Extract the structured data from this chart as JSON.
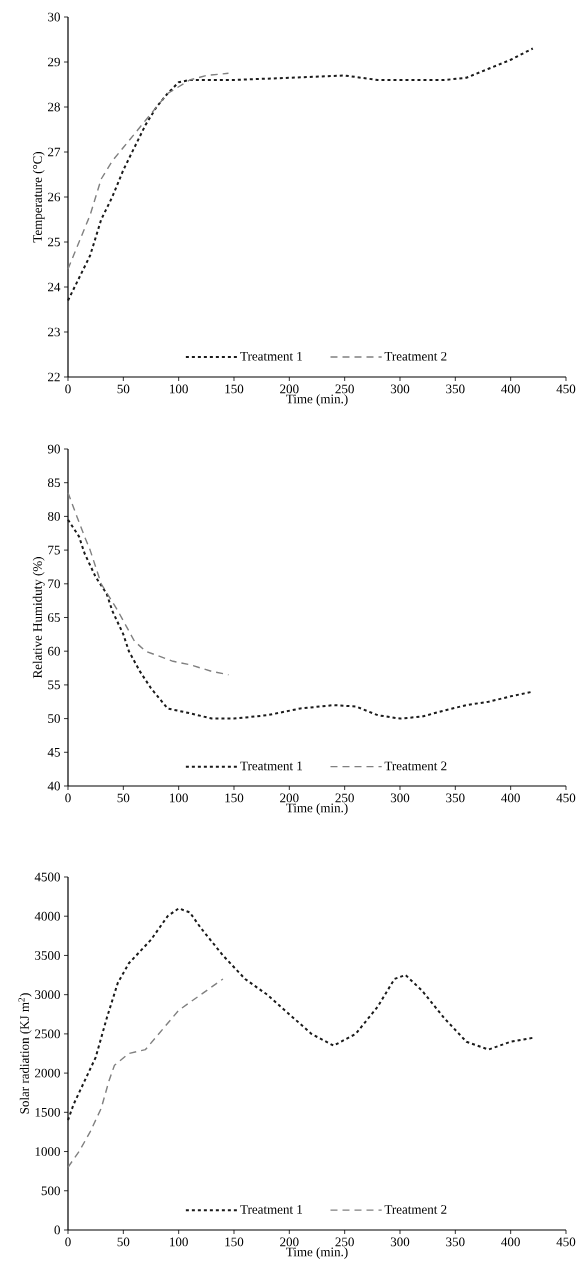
{
  "chart_data": [
    {
      "type": "line",
      "xlabel": "Time (min.)",
      "ylabel": "Temperature (°C)",
      "xlim": [
        0,
        450
      ],
      "xticks": [
        0,
        50,
        100,
        150,
        200,
        250,
        300,
        350,
        400,
        450
      ],
      "ylim": [
        22,
        30
      ],
      "yticks": [
        22,
        23,
        24,
        25,
        26,
        27,
        28,
        29,
        30
      ],
      "legend": "bottom",
      "series": [
        {
          "name": "Treatment 1",
          "color": "#1a1a1a",
          "line_style": "dotted",
          "x": [
            0,
            10,
            20,
            30,
            40,
            50,
            60,
            70,
            80,
            90,
            100,
            110,
            125,
            150,
            200,
            250,
            280,
            300,
            340,
            360,
            380,
            400,
            420
          ],
          "values": [
            23.7,
            24.2,
            24.7,
            25.5,
            26.0,
            26.6,
            27.1,
            27.6,
            28.0,
            28.3,
            28.55,
            28.6,
            28.6,
            28.6,
            28.65,
            28.7,
            28.6,
            28.6,
            28.6,
            28.65,
            28.85,
            29.05,
            29.3
          ]
        },
        {
          "name": "Treatment 2",
          "color": "#808080",
          "line_style": "dashed",
          "x": [
            0,
            10,
            20,
            30,
            40,
            50,
            60,
            70,
            80,
            90,
            100,
            110,
            125,
            145
          ],
          "values": [
            24.4,
            25.0,
            25.6,
            26.4,
            26.8,
            27.1,
            27.4,
            27.7,
            28.0,
            28.3,
            28.45,
            28.6,
            28.7,
            28.75
          ]
        }
      ]
    },
    {
      "type": "line",
      "xlabel": "Time (min.)",
      "ylabel": "Relative Humiduty (%)",
      "xlim": [
        0,
        450
      ],
      "xticks": [
        0,
        50,
        100,
        150,
        200,
        250,
        300,
        350,
        400,
        450
      ],
      "ylim": [
        40,
        90
      ],
      "yticks": [
        40,
        45,
        50,
        55,
        60,
        65,
        70,
        75,
        80,
        85,
        90
      ],
      "legend": "bottom",
      "series": [
        {
          "name": "Treatment 1",
          "color": "#1a1a1a",
          "line_style": "dotted",
          "x": [
            0,
            10,
            15,
            25,
            35,
            40,
            50,
            55,
            65,
            75,
            90,
            110,
            130,
            150,
            180,
            210,
            240,
            260,
            280,
            300,
            320,
            340,
            360,
            380,
            400,
            420
          ],
          "values": [
            79.5,
            77,
            74.5,
            71,
            68.5,
            66,
            62.5,
            60,
            57,
            54.5,
            51.5,
            50.8,
            50,
            50,
            50.5,
            51.5,
            52,
            51.8,
            50.5,
            50,
            50.3,
            51.2,
            52,
            52.5,
            53.3,
            54
          ]
        },
        {
          "name": "Treatment 2",
          "color": "#808080",
          "line_style": "dashed",
          "x": [
            0,
            8,
            15,
            20,
            30,
            45,
            60,
            70,
            95,
            110,
            130,
            145
          ],
          "values": [
            83.5,
            80,
            77,
            75,
            70,
            66,
            61.5,
            60,
            58.5,
            58,
            57,
            56.5
          ]
        }
      ]
    },
    {
      "type": "line",
      "xlabel": "Time (min.)",
      "ylabel": "Solar radiation (KJ m$^{2}$)",
      "xlim": [
        0,
        450
      ],
      "xticks": [
        0,
        50,
        100,
        150,
        200,
        250,
        300,
        350,
        400,
        450
      ],
      "ylim": [
        0,
        4500
      ],
      "yticks": [
        0,
        500,
        1000,
        1500,
        2000,
        2500,
        3000,
        3500,
        4000,
        4500
      ],
      "legend": "bottom",
      "series": [
        {
          "name": "Treatment 1",
          "color": "#1a1a1a",
          "line_style": "dotted",
          "x": [
            0,
            5,
            15,
            25,
            35,
            45,
            55,
            75,
            90,
            100,
            110,
            120,
            140,
            160,
            180,
            200,
            220,
            240,
            260,
            280,
            295,
            305,
            320,
            340,
            360,
            380,
            400,
            420
          ],
          "values": [
            1400,
            1600,
            1900,
            2200,
            2700,
            3150,
            3400,
            3700,
            4000,
            4100,
            4050,
            3850,
            3500,
            3200,
            3000,
            2750,
            2500,
            2350,
            2500,
            2850,
            3200,
            3250,
            3050,
            2700,
            2400,
            2300,
            2400,
            2450
          ]
        },
        {
          "name": "Treatment 2",
          "color": "#808080",
          "line_style": "dashed",
          "x": [
            0,
            10,
            20,
            30,
            37,
            42,
            55,
            70,
            85,
            100,
            120,
            140
          ],
          "values": [
            800,
            1000,
            1250,
            1550,
            1900,
            2100,
            2250,
            2300,
            2550,
            2800,
            3000,
            3200
          ]
        }
      ]
    }
  ]
}
